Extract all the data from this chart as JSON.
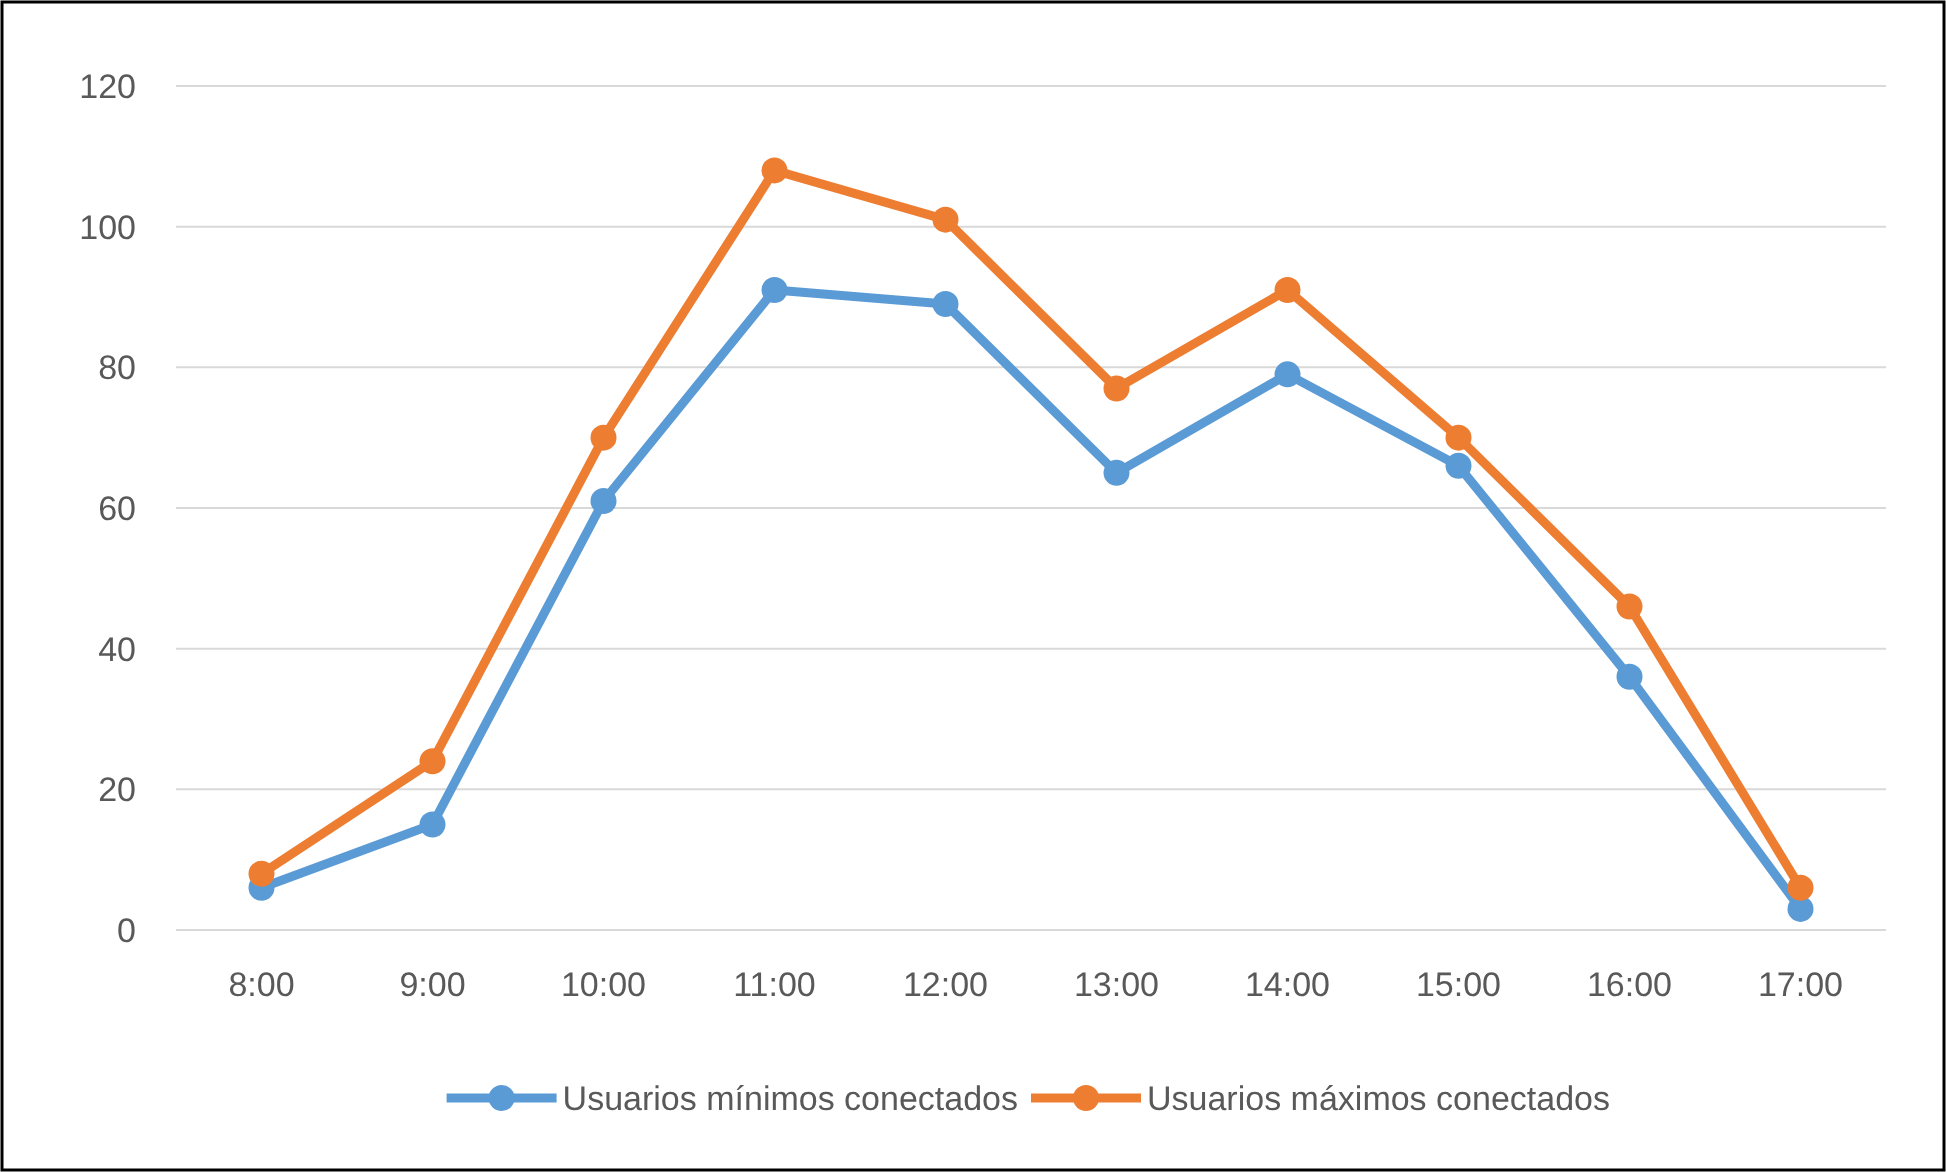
{
  "chart_data": {
    "type": "line",
    "categories": [
      "8:00",
      "9:00",
      "10:00",
      "11:00",
      "12:00",
      "13:00",
      "14:00",
      "15:00",
      "16:00",
      "17:00"
    ],
    "series": [
      {
        "name": "Usuarios mínimos conectados",
        "color": "#5b9bd5",
        "values": [
          6,
          15,
          61,
          91,
          89,
          65,
          79,
          66,
          36,
          3
        ]
      },
      {
        "name": "Usuarios máximos conectados",
        "color": "#ed7d31",
        "values": [
          8,
          24,
          70,
          108,
          101,
          77,
          91,
          70,
          46,
          6
        ]
      }
    ],
    "ylim": [
      0,
      120
    ],
    "yticks": [
      0,
      20,
      40,
      60,
      80,
      100,
      120
    ],
    "grid": "y",
    "legend": "bottom",
    "marker": "circle",
    "line_style": "solid"
  }
}
